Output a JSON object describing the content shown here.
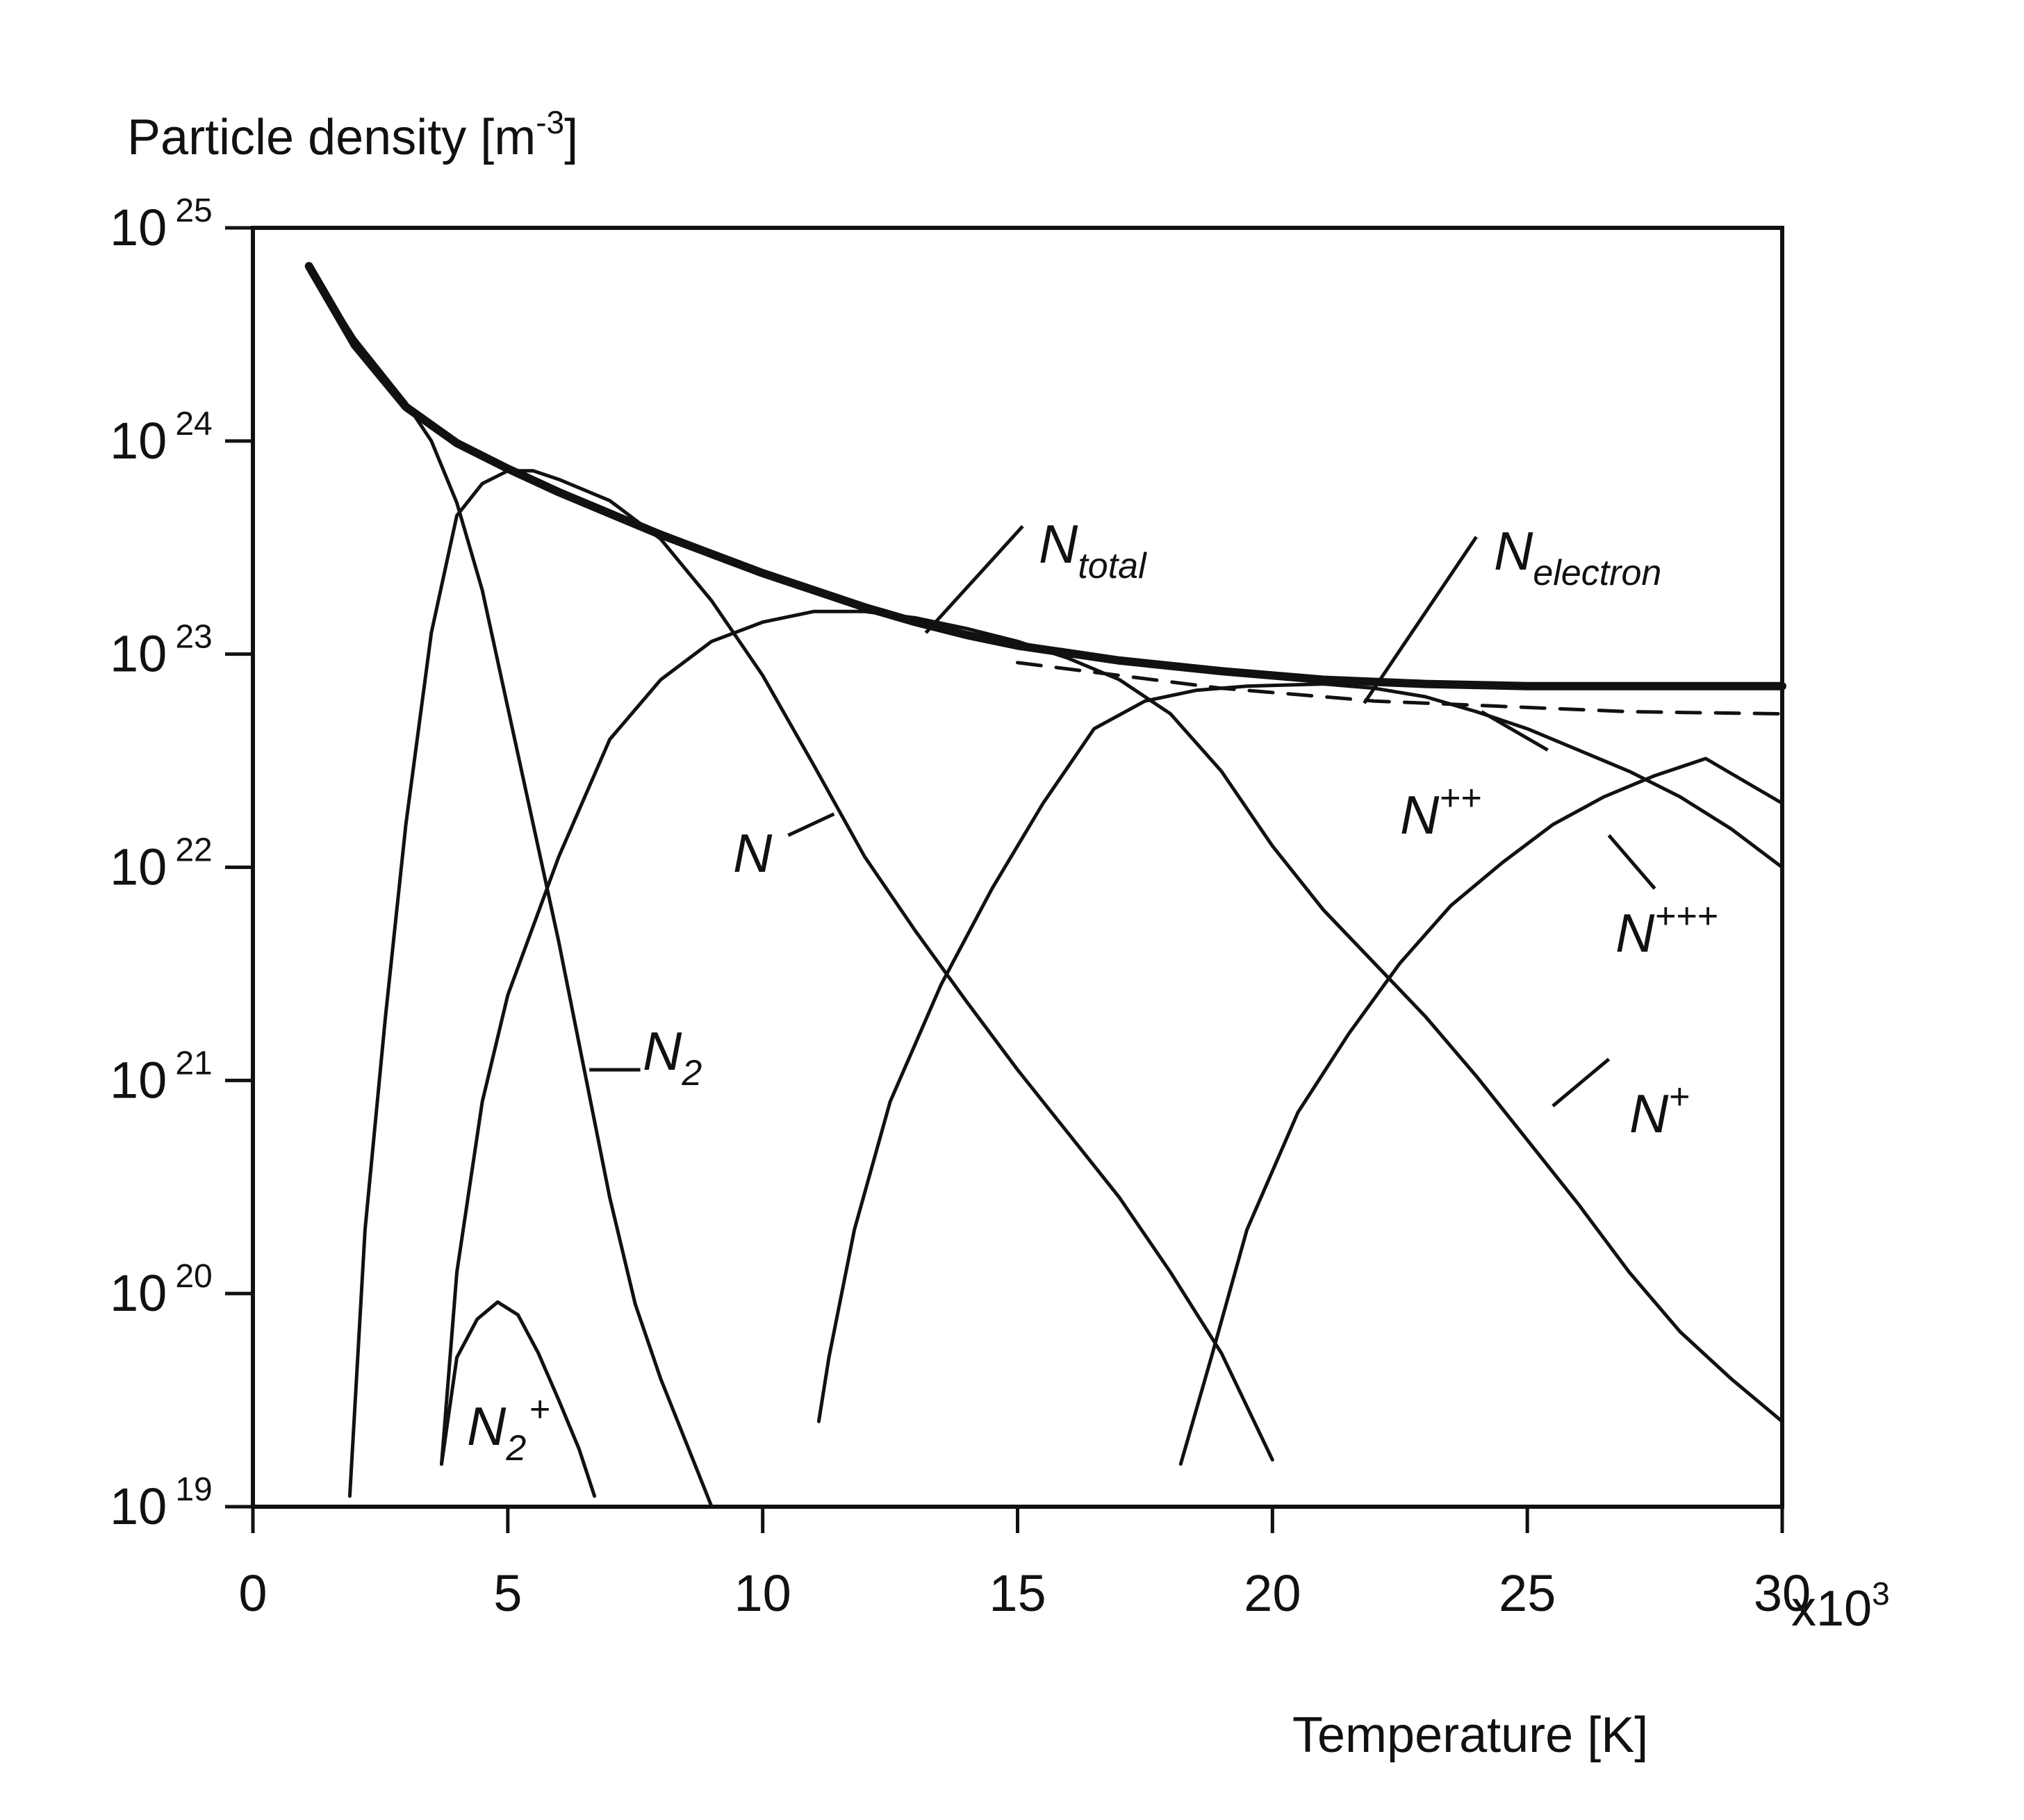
{
  "chart_data": {
    "type": "line",
    "title": "",
    "ylabel": "Particle density [m",
    "ylabel_sup": "-3",
    "ylabel_end": "]",
    "xlabel": "Temperature [K]",
    "x_multiplier": "x10",
    "x_multiplier_sup": "3",
    "xlim": [
      0,
      30
    ],
    "ylim": [
      19,
      25
    ],
    "y_scale": "log10",
    "x_ticks": [
      {
        "value": 0,
        "label": "0"
      },
      {
        "value": 5,
        "label": "5"
      },
      {
        "value": 10,
        "label": "10"
      },
      {
        "value": 15,
        "label": "15"
      },
      {
        "value": 20,
        "label": "20"
      },
      {
        "value": 25,
        "label": "25"
      },
      {
        "value": 30,
        "label": "30"
      }
    ],
    "y_ticks": [
      {
        "value": 25,
        "base": "10",
        "exp": "25"
      },
      {
        "value": 24,
        "base": "10",
        "exp": "24"
      },
      {
        "value": 23,
        "base": "10",
        "exp": "23"
      },
      {
        "value": 22,
        "base": "10",
        "exp": "22"
      },
      {
        "value": 21,
        "base": "10",
        "exp": "21"
      },
      {
        "value": 20,
        "base": "10",
        "exp": "20"
      },
      {
        "value": 19,
        "base": "10",
        "exp": "19"
      }
    ],
    "grid": false,
    "legend": "none",
    "series": [
      {
        "name": "N_total",
        "label": {
          "main": "N",
          "sub": "total",
          "sup": ""
        },
        "style": "solid-bold",
        "points": [
          [
            1.1,
            24.82
          ],
          [
            2.0,
            24.45
          ],
          [
            3.0,
            24.16
          ],
          [
            4.0,
            23.99
          ],
          [
            5.0,
            23.87
          ],
          [
            6.0,
            23.76
          ],
          [
            7.0,
            23.66
          ],
          [
            8.0,
            23.56
          ],
          [
            9.0,
            23.47
          ],
          [
            10.0,
            23.38
          ],
          [
            11.0,
            23.3
          ],
          [
            12.0,
            23.22
          ],
          [
            13.0,
            23.15
          ],
          [
            14.0,
            23.09
          ],
          [
            15.0,
            23.04
          ],
          [
            17.0,
            22.97
          ],
          [
            19.0,
            22.92
          ],
          [
            21.0,
            22.88
          ],
          [
            23.0,
            22.86
          ],
          [
            25.0,
            22.85
          ],
          [
            27.0,
            22.85
          ],
          [
            30.0,
            22.85
          ]
        ]
      },
      {
        "name": "N_electron",
        "label": {
          "main": "N",
          "sub": "electron",
          "sup": ""
        },
        "style": "dashed",
        "points": [
          [
            15.0,
            22.96
          ],
          [
            16.0,
            22.93
          ],
          [
            17.0,
            22.9
          ],
          [
            18.0,
            22.87
          ],
          [
            19.0,
            22.84
          ],
          [
            20.0,
            22.82
          ],
          [
            21.0,
            22.8
          ],
          [
            22.0,
            22.78
          ],
          [
            23.0,
            22.77
          ],
          [
            25.0,
            22.75
          ],
          [
            27.0,
            22.73
          ],
          [
            30.0,
            22.72
          ]
        ]
      },
      {
        "name": "N_2",
        "label": {
          "main": "N",
          "sub": "2",
          "sup": ""
        },
        "style": "solid",
        "points": [
          [
            1.1,
            24.82
          ],
          [
            2.0,
            24.48
          ],
          [
            3.0,
            24.18
          ],
          [
            3.5,
            24.0
          ],
          [
            4.0,
            23.71
          ],
          [
            4.5,
            23.3
          ],
          [
            5.0,
            22.75
          ],
          [
            5.5,
            22.2
          ],
          [
            6.0,
            21.65
          ],
          [
            6.5,
            21.05
          ],
          [
            7.0,
            20.45
          ],
          [
            7.5,
            19.95
          ],
          [
            8.0,
            19.6
          ],
          [
            8.5,
            19.3
          ],
          [
            9.0,
            19.0
          ]
        ]
      },
      {
        "name": "N_2+",
        "label": {
          "main": "N",
          "sub": "2",
          "sup": "+"
        },
        "style": "solid",
        "points": [
          [
            3.7,
            19.2
          ],
          [
            4.0,
            19.7
          ],
          [
            4.4,
            19.88
          ],
          [
            4.8,
            19.96
          ],
          [
            5.2,
            19.9
          ],
          [
            5.6,
            19.72
          ],
          [
            6.0,
            19.5
          ],
          [
            6.4,
            19.27
          ],
          [
            6.7,
            19.05
          ]
        ]
      },
      {
        "name": "N",
        "label": {
          "main": "N",
          "sub": "",
          "sup": ""
        },
        "style": "solid",
        "points": [
          [
            1.9,
            19.05
          ],
          [
            2.2,
            20.3
          ],
          [
            2.6,
            21.3
          ],
          [
            3.0,
            22.2
          ],
          [
            3.5,
            23.1
          ],
          [
            4.0,
            23.65
          ],
          [
            4.5,
            23.8
          ],
          [
            5.0,
            23.86
          ],
          [
            5.5,
            23.86
          ],
          [
            6.0,
            23.82
          ],
          [
            7.0,
            23.72
          ],
          [
            8.0,
            23.54
          ],
          [
            9.0,
            23.25
          ],
          [
            10.0,
            22.9
          ],
          [
            11.0,
            22.48
          ],
          [
            12.0,
            22.05
          ],
          [
            13.0,
            21.7
          ],
          [
            14.0,
            21.37
          ],
          [
            15.0,
            21.05
          ],
          [
            16.0,
            20.75
          ],
          [
            17.0,
            20.45
          ],
          [
            18.0,
            20.1
          ],
          [
            19.0,
            19.72
          ],
          [
            20.0,
            19.22
          ]
        ]
      },
      {
        "name": "N+",
        "label": {
          "main": "N",
          "sub": "",
          "sup": "+"
        },
        "style": "solid",
        "points": [
          [
            3.7,
            19.2
          ],
          [
            4.0,
            20.1
          ],
          [
            4.5,
            20.9
          ],
          [
            5.0,
            21.4
          ],
          [
            6.0,
            22.05
          ],
          [
            7.0,
            22.6
          ],
          [
            8.0,
            22.88
          ],
          [
            9.0,
            23.06
          ],
          [
            10.0,
            23.15
          ],
          [
            11.0,
            23.2
          ],
          [
            12.0,
            23.2
          ],
          [
            13.0,
            23.17
          ],
          [
            14.0,
            23.12
          ],
          [
            15.0,
            23.06
          ],
          [
            16.0,
            22.98
          ],
          [
            17.0,
            22.88
          ],
          [
            18.0,
            22.72
          ],
          [
            19.0,
            22.45
          ],
          [
            20.0,
            22.1
          ],
          [
            21.0,
            21.8
          ],
          [
            22.0,
            21.55
          ],
          [
            23.0,
            21.3
          ],
          [
            24.0,
            21.02
          ],
          [
            25.0,
            20.72
          ],
          [
            26.0,
            20.42
          ],
          [
            27.0,
            20.1
          ],
          [
            28.0,
            19.82
          ],
          [
            29.0,
            19.6
          ],
          [
            30.0,
            19.4
          ]
        ]
      },
      {
        "name": "N++",
        "label": {
          "main": "N",
          "sub": "",
          "sup": "++"
        },
        "style": "solid",
        "points": [
          [
            11.1,
            19.4
          ],
          [
            11.3,
            19.7
          ],
          [
            11.8,
            20.3
          ],
          [
            12.5,
            20.9
          ],
          [
            13.5,
            21.45
          ],
          [
            14.5,
            21.9
          ],
          [
            15.5,
            22.3
          ],
          [
            16.5,
            22.65
          ],
          [
            17.5,
            22.78
          ],
          [
            18.5,
            22.83
          ],
          [
            19.5,
            22.85
          ],
          [
            21.0,
            22.86
          ],
          [
            22.0,
            22.84
          ],
          [
            23.0,
            22.8
          ],
          [
            24.0,
            22.73
          ],
          [
            25.0,
            22.65
          ],
          [
            26.0,
            22.55
          ],
          [
            27.0,
            22.45
          ],
          [
            28.0,
            22.33
          ],
          [
            29.0,
            22.18
          ],
          [
            30.0,
            22.0
          ]
        ]
      },
      {
        "name": "N+++",
        "label": {
          "main": "N",
          "sub": "",
          "sup": "+++"
        },
        "style": "solid",
        "points": [
          [
            18.2,
            19.2
          ],
          [
            18.8,
            19.7
          ],
          [
            19.5,
            20.3
          ],
          [
            20.5,
            20.85
          ],
          [
            21.5,
            21.22
          ],
          [
            22.5,
            21.55
          ],
          [
            23.5,
            21.82
          ],
          [
            24.5,
            22.02
          ],
          [
            25.5,
            22.2
          ],
          [
            26.5,
            22.33
          ],
          [
            27.5,
            22.43
          ],
          [
            28.5,
            22.51
          ],
          [
            30.0,
            22.3
          ]
        ]
      }
    ]
  }
}
